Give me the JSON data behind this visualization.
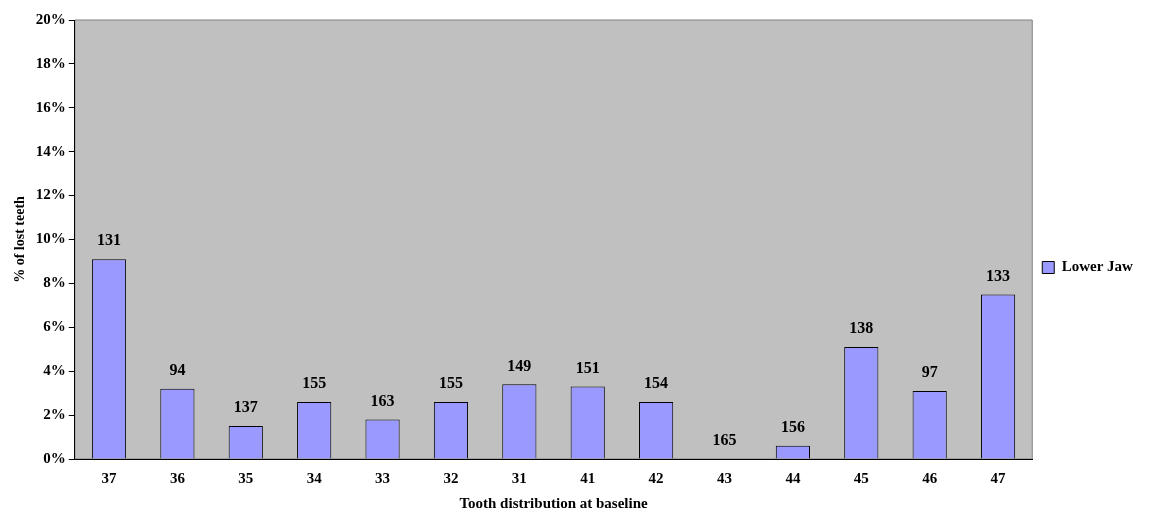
{
  "chart_data": {
    "type": "bar",
    "xlabel": "Tooth distribution at baseline",
    "ylabel": "% of lost teeth",
    "categories": [
      "37",
      "36",
      "35",
      "34",
      "33",
      "32",
      "31",
      "41",
      "42",
      "43",
      "44",
      "45",
      "46",
      "47"
    ],
    "series": [
      {
        "name": "Lower Jaw",
        "color": "#9999ff",
        "values": [
          9.1,
          3.2,
          1.5,
          2.6,
          1.8,
          2.6,
          3.4,
          3.3,
          2.6,
          0,
          0.6,
          5.1,
          3.1,
          7.5
        ]
      }
    ],
    "annotations": [
      {
        "text": "131",
        "x": "37",
        "y": 9.1
      },
      {
        "text": "94",
        "x": "36",
        "y": 3.2
      },
      {
        "text": "137",
        "x": "35",
        "y": 1.5
      },
      {
        "text": "155",
        "x": "34",
        "y": 2.6
      },
      {
        "text": "163",
        "x": "33",
        "y": 1.8
      },
      {
        "text": "155",
        "x": "32",
        "y": 2.6
      },
      {
        "text": "149",
        "x": "31",
        "y": 3.4
      },
      {
        "text": "151",
        "x": "41",
        "y": 3.3
      },
      {
        "text": "154",
        "x": "42",
        "y": 2.6
      },
      {
        "text": "165",
        "x": "43",
        "y": 0
      },
      {
        "text": "156",
        "x": "44",
        "y": 0.6
      },
      {
        "text": "138",
        "x": "45",
        "y": 5.1
      },
      {
        "text": "97",
        "x": "46",
        "y": 3.1
      },
      {
        "text": "133",
        "x": "47",
        "y": 7.5
      }
    ],
    "ylim": [
      0,
      20
    ],
    "yticks": [
      {
        "value": 0,
        "label": "0%"
      },
      {
        "value": 2,
        "label": "2%"
      },
      {
        "value": 4,
        "label": "4%"
      },
      {
        "value": 6,
        "label": "6%"
      },
      {
        "value": 8,
        "label": "8%"
      },
      {
        "value": 10,
        "label": "10%"
      },
      {
        "value": 12,
        "label": "12%"
      },
      {
        "value": 14,
        "label": "14%"
      },
      {
        "value": 16,
        "label": "16%"
      },
      {
        "value": 18,
        "label": "18%"
      },
      {
        "value": 20,
        "label": "20%"
      }
    ],
    "grid": false,
    "legend": "right"
  }
}
